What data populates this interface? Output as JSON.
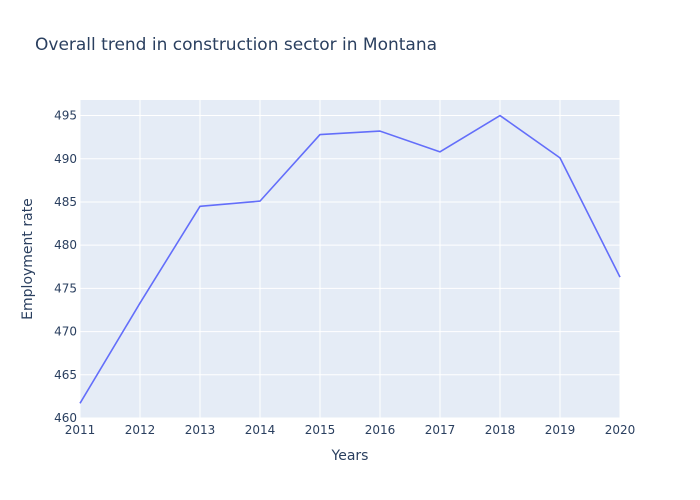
{
  "chart_data": {
    "type": "line",
    "title": "Overall trend in construction sector in Montana",
    "xlabel": "Years",
    "ylabel": "Employment rate",
    "x": [
      2011,
      2012,
      2013,
      2014,
      2015,
      2016,
      2017,
      2018,
      2019,
      2020
    ],
    "x_ticks": [
      "2011",
      "2012",
      "2013",
      "2014",
      "2015",
      "2016",
      "2017",
      "2018",
      "2019",
      "2020"
    ],
    "y_ticks": [
      "460",
      "465",
      "470",
      "475",
      "480",
      "485",
      "490",
      "495"
    ],
    "xlim": [
      2011,
      2020
    ],
    "ylim": [
      460,
      496.8
    ],
    "grid": true,
    "legend": "none",
    "series": [
      {
        "values": [
          461.7,
          473.3,
          484.5,
          485.1,
          492.8,
          493.2,
          490.8,
          495.0,
          490.1,
          476.3
        ]
      }
    ],
    "colors": {
      "line": "#636efa",
      "plot_bg": "#e5ecf6",
      "grid": "#ffffff",
      "text": "#2a3f5f"
    }
  }
}
